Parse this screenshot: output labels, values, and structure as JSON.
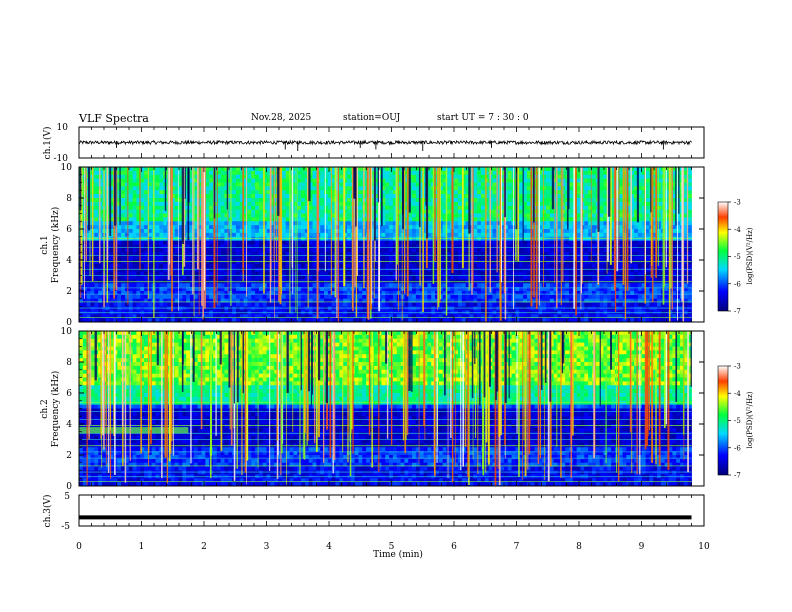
{
  "header": {
    "title": "VLF Spectra",
    "date": "Nov.28, 2025",
    "station": "station=OUJ",
    "start_ut": "start  UT =   7 : 30 : 0"
  },
  "chart_data": [
    {
      "type": "line",
      "name": "ch1-waveform",
      "ylabel": "ch.1(V)",
      "ylim": [
        -10,
        10
      ],
      "y_ticks": [
        "10",
        "-10"
      ],
      "xlim": [
        0,
        10
      ],
      "baseline": 0,
      "spikes_min": [
        0.6,
        3.3,
        3.5,
        4.5,
        4.75,
        5.5,
        6.6,
        9.35
      ]
    },
    {
      "type": "heatmap",
      "name": "ch1-spectrogram",
      "ylabel": "ch.1\nFrequency (kHz)",
      "ylim": [
        0,
        10
      ],
      "y_ticks": [
        "0",
        "2",
        "4",
        "6",
        "8",
        "10"
      ],
      "xlim": [
        0,
        10
      ],
      "data_extent_min": 9.8,
      "colorbar": {
        "label": "log(PSD)(V²/Hz)",
        "range": [
          -7,
          -3
        ],
        "ticks": [
          "-3",
          "-4",
          "-5",
          "-6",
          "-7"
        ]
      }
    },
    {
      "type": "heatmap",
      "name": "ch2-spectrogram",
      "ylabel": "ch.2\nFrequency (kHz)",
      "ylim": [
        0,
        10
      ],
      "y_ticks": [
        "0",
        "2",
        "4",
        "6",
        "8",
        "10"
      ],
      "xlim": [
        0,
        10
      ],
      "data_extent_min": 9.8,
      "colorbar": {
        "label": "log(PSD)(V²/Hz)",
        "range": [
          -7,
          -3
        ],
        "ticks": [
          "-3",
          "-4",
          "-5",
          "-6",
          "-7"
        ]
      }
    },
    {
      "type": "line",
      "name": "ch3-waveform",
      "ylabel": "ch.3(V)",
      "ylim": [
        -5,
        5
      ],
      "y_ticks": [
        "5",
        "-5"
      ],
      "xlim": [
        0,
        10
      ],
      "baseline": -2.2
    }
  ],
  "x_axis": {
    "label": "Time (min)",
    "ticks": [
      "0",
      "1",
      "2",
      "3",
      "4",
      "5",
      "6",
      "7",
      "8",
      "9",
      "10"
    ]
  }
}
